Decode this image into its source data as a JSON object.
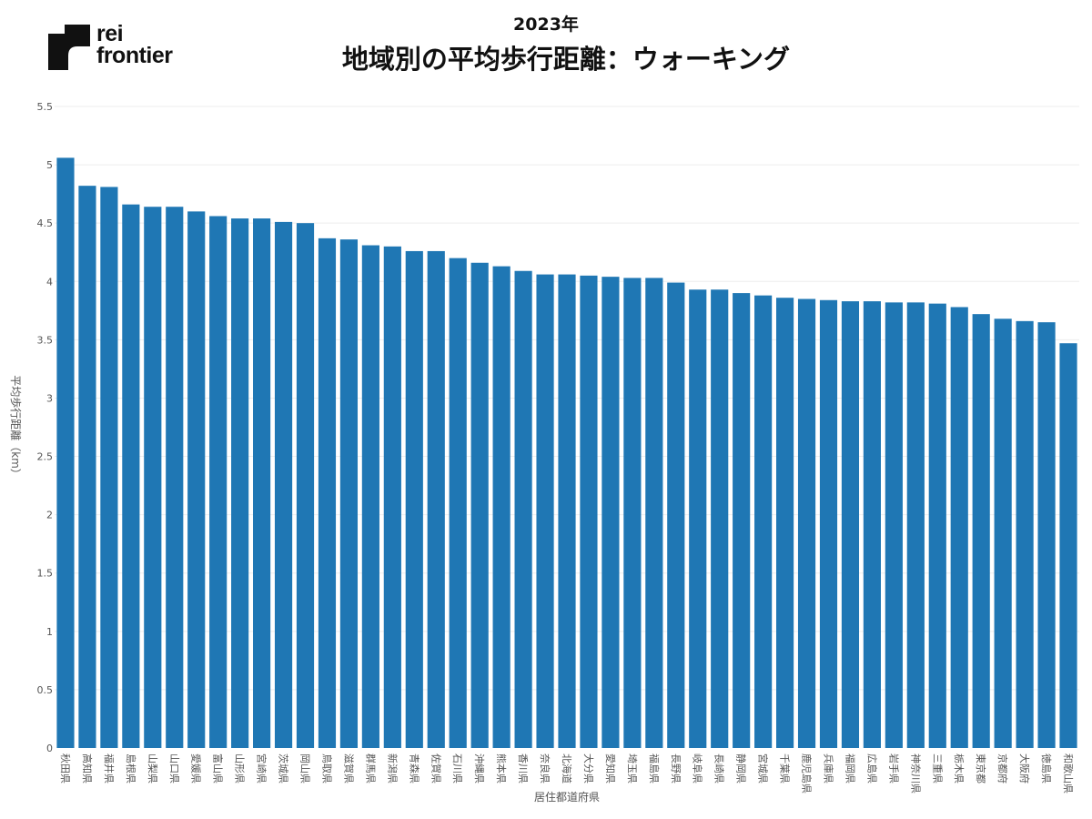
{
  "logo": {
    "line1": "rei",
    "line2": "frontier"
  },
  "header": {
    "subtitle": "2023年",
    "title": "地域別の平均歩行距離：ウォーキング"
  },
  "colors": {
    "bar": "#1f77b4",
    "grid": "#eeeeee",
    "axis_text": "#555555"
  },
  "chart_data": {
    "type": "bar",
    "title": "地域別の平均歩行距離：ウォーキング",
    "subtitle": "2023年",
    "xlabel": "居住都道府県",
    "ylabel": "平均歩行距離（km）",
    "ylim": [
      0,
      5.5
    ],
    "yticks": [
      "0",
      "0.5",
      "1",
      "1.5",
      "2",
      "2.5",
      "3",
      "3.5",
      "4",
      "4.5",
      "5",
      "5.5"
    ],
    "grid": true,
    "categories": [
      "秋田県",
      "高知県",
      "福井県",
      "島根県",
      "山梨県",
      "山口県",
      "愛媛県",
      "富山県",
      "山形県",
      "宮崎県",
      "茨城県",
      "岡山県",
      "鳥取県",
      "滋賀県",
      "群馬県",
      "新潟県",
      "青森県",
      "佐賀県",
      "石川県",
      "沖縄県",
      "熊本県",
      "香川県",
      "奈良県",
      "北海道",
      "大分県",
      "愛知県",
      "埼玉県",
      "福島県",
      "長野県",
      "岐阜県",
      "長崎県",
      "静岡県",
      "宮城県",
      "千葉県",
      "鹿児島県",
      "兵庫県",
      "福岡県",
      "広島県",
      "岩手県",
      "神奈川県",
      "三重県",
      "栃木県",
      "東京都",
      "京都府",
      "大阪府",
      "徳島県",
      "和歌山県"
    ],
    "values": [
      5.06,
      4.82,
      4.81,
      4.66,
      4.64,
      4.64,
      4.6,
      4.56,
      4.54,
      4.54,
      4.51,
      4.5,
      4.37,
      4.36,
      4.31,
      4.3,
      4.26,
      4.26,
      4.2,
      4.16,
      4.13,
      4.09,
      4.06,
      4.06,
      4.05,
      4.04,
      4.03,
      4.03,
      3.99,
      3.93,
      3.93,
      3.9,
      3.88,
      3.86,
      3.85,
      3.84,
      3.83,
      3.83,
      3.82,
      3.82,
      3.81,
      3.78,
      3.72,
      3.68,
      3.66,
      3.65,
      3.47
    ]
  }
}
